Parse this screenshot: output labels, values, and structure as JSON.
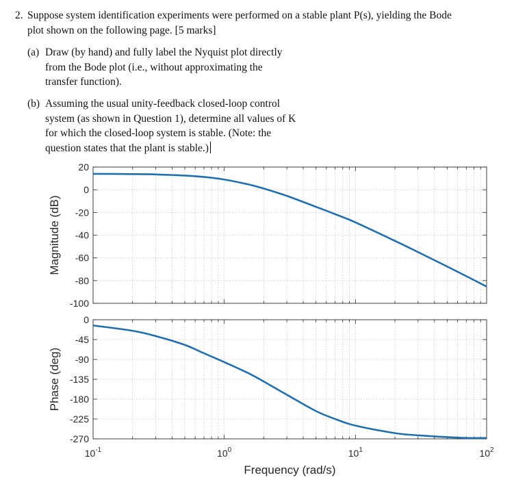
{
  "question": {
    "number": "2.",
    "lines": [
      "Suppose system identification experiments were performed on a stable plant P(s), yielding the Bode",
      "plot shown on the following page.  [5 marks]"
    ],
    "part_a": {
      "label": "(a)",
      "lines": [
        "Draw (by hand) and fully label the Nyquist plot directly",
        "from the Bode plot (i.e., without approximating the",
        "transfer function)."
      ]
    },
    "part_b": {
      "label": "(b)",
      "lines": [
        "Assuming the usual unity-feedback closed-loop control",
        "system (as shown in Question 1), determine all values of K",
        "for which the closed-loop system is stable. (Note: the",
        "question states that the plant is stable.)"
      ]
    }
  },
  "chart_data": [
    {
      "type": "line",
      "panel": "magnitude",
      "ylabel": "Magnitude (dB)",
      "xscale": "log",
      "xlim": [
        0.1,
        100
      ],
      "ylim": [
        -100,
        20
      ],
      "yticks": [
        20,
        0,
        -20,
        -40,
        -60,
        -80,
        -100
      ],
      "ytick_labels": [
        "20",
        "0",
        "-20",
        "-40",
        "-60",
        "-80",
        "-100"
      ],
      "grid": true,
      "line_color": "#1f6fb0",
      "series": [
        {
          "x": [
            0.1,
            0.2,
            0.3,
            0.5,
            0.7,
            1,
            1.5,
            2,
            3,
            5,
            7,
            10,
            20,
            30,
            50,
            70,
            100
          ],
          "values": [
            14,
            13.8,
            13.5,
            12.5,
            11.3,
            9,
            4.9,
            1.1,
            -5.4,
            -15,
            -21.5,
            -28.7,
            -45,
            -54.9,
            -67.6,
            -76.1,
            -85.3
          ]
        }
      ]
    },
    {
      "type": "line",
      "panel": "phase",
      "ylabel": "Phase (deg)",
      "xlabel": "Frequency  (rad/s)",
      "xscale": "log",
      "xlim": [
        0.1,
        100
      ],
      "ylim": [
        -270,
        0
      ],
      "yticks": [
        0,
        -45,
        -90,
        -135,
        -180,
        -225,
        -270
      ],
      "ytick_labels": [
        "0",
        "-45",
        "-90",
        "-135",
        "-180",
        "-225",
        "-270"
      ],
      "xticks": [
        0.1,
        1,
        10,
        100
      ],
      "xtick_bases": [
        "10",
        "10",
        "10",
        "10"
      ],
      "xtick_exponents": [
        "-1",
        "0",
        "1",
        "2"
      ],
      "grid": true,
      "line_color": "#1f6fb0",
      "series": [
        {
          "x": [
            0.1,
            0.2,
            0.3,
            0.5,
            0.7,
            1,
            1.5,
            2,
            3,
            5,
            7,
            10,
            20,
            30,
            50,
            70,
            100
          ],
          "values": [
            -13,
            -25,
            -37,
            -57,
            -76,
            -96,
            -120,
            -140,
            -170,
            -207,
            -225,
            -240,
            -257,
            -262,
            -266,
            -268,
            -268
          ]
        }
      ]
    }
  ]
}
